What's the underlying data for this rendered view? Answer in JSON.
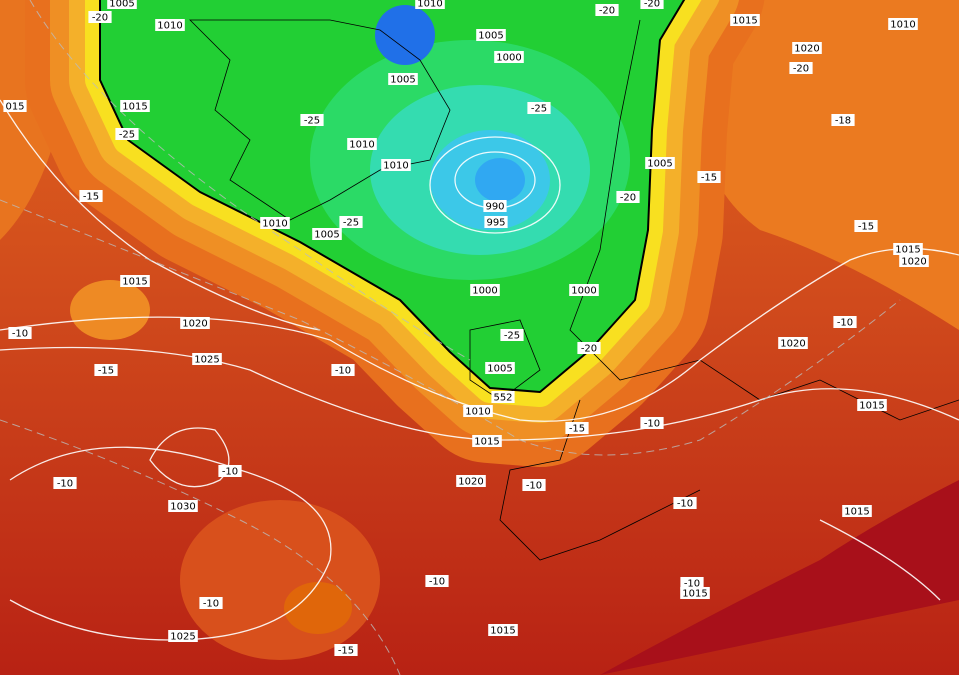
{
  "labels": [
    "1005",
    "-20",
    "1010",
    "1010",
    "-20",
    "-20",
    "1015",
    "1010",
    "1020",
    "-20",
    "015",
    "1015",
    "-25",
    "-25",
    "1005",
    "1005",
    "1000",
    "-25",
    "1010",
    "1010",
    "-18",
    "1005",
    "-15",
    "-20",
    "990",
    "995",
    "-25",
    "1005",
    "1010",
    "-15",
    "1015",
    "1020",
    "-15",
    "1015",
    "1000",
    "1000",
    "-10",
    "1020",
    "-25",
    "-20",
    "-10",
    "1020",
    "1025",
    "-15",
    "-10",
    "1005",
    "552",
    "1010",
    "1015",
    "-15",
    "-10",
    "1015",
    "-10",
    "-10",
    "1020",
    "-10",
    "1030",
    "-10",
    "1015",
    "-10",
    "-10",
    "1015",
    "-10",
    "1025",
    "1015",
    "-15"
  ]
}
